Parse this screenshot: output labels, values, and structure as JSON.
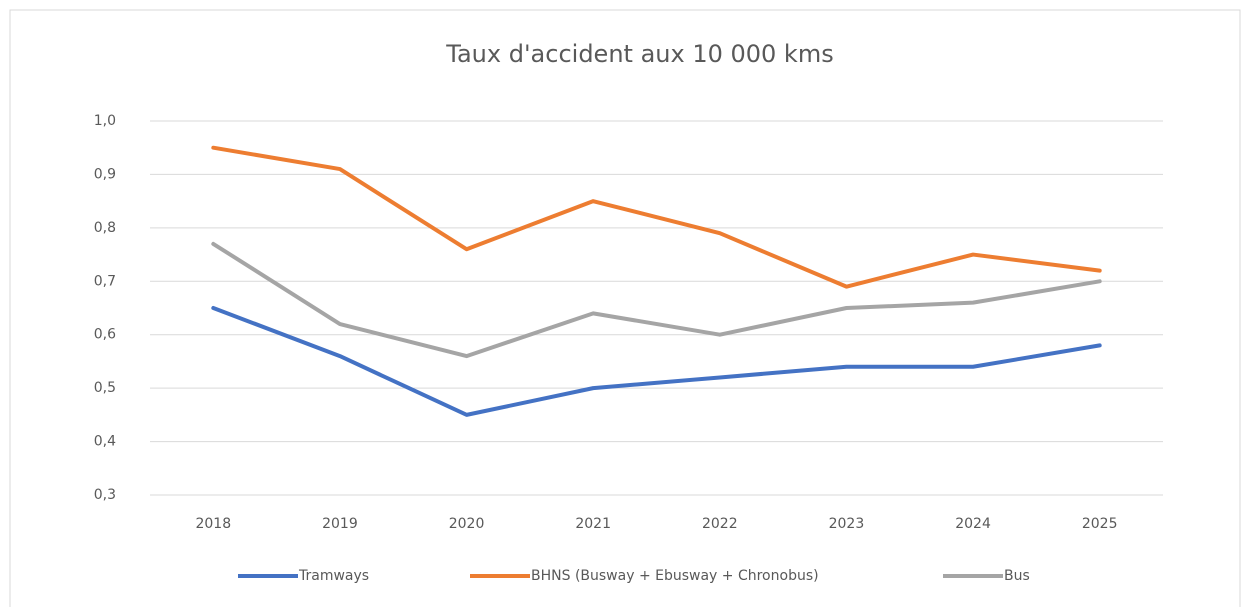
{
  "chart_data": {
    "type": "line",
    "title": "Taux d'accident aux 10 000 kms",
    "categories": [
      "2018",
      "2019",
      "2020",
      "2021",
      "2022",
      "2023",
      "2024",
      "2025"
    ],
    "series": [
      {
        "name": "Tramways",
        "color": "#4472c4",
        "values": [
          0.65,
          0.56,
          0.45,
          0.5,
          0.52,
          0.54,
          0.54,
          0.58
        ]
      },
      {
        "name": "BHNS (Busway + Ebusway + Chronobus)",
        "color": "#ed7d31",
        "values": [
          0.95,
          0.91,
          0.76,
          0.85,
          0.79,
          0.69,
          0.75,
          0.72
        ]
      },
      {
        "name": "Bus",
        "color": "#a5a5a5",
        "values": [
          0.77,
          0.62,
          0.56,
          0.64,
          0.6,
          0.65,
          0.66,
          0.7
        ]
      }
    ],
    "ylim": [
      0.3,
      1.0
    ],
    "yticks": [
      {
        "value": 0.3,
        "label": "0,3"
      },
      {
        "value": 0.4,
        "label": "0,4"
      },
      {
        "value": 0.5,
        "label": "0,5"
      },
      {
        "value": 0.6,
        "label": "0,6"
      },
      {
        "value": 0.7,
        "label": "0,7"
      },
      {
        "value": 0.8,
        "label": "0,8"
      },
      {
        "value": 0.9,
        "label": "0,9"
      },
      {
        "value": 1.0,
        "label": "1,0"
      }
    ],
    "grid": true,
    "legend": "bottom"
  }
}
